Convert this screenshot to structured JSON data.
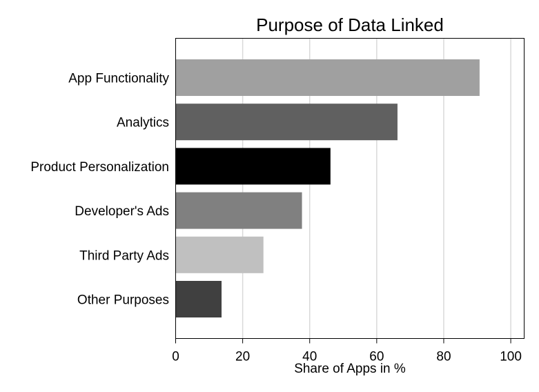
{
  "chart_data": {
    "type": "bar",
    "orientation": "horizontal",
    "title": "Purpose of Data Linked",
    "xlabel": "Share of Apps in %",
    "ylabel": "",
    "categories": [
      "App Functionality",
      "Analytics",
      "Product Personalization",
      "Developer's Ads",
      "Third Party Ads",
      "Other Purposes"
    ],
    "values": [
      90.7,
      66.2,
      46.2,
      37.7,
      26.2,
      13.7
    ],
    "colors": [
      "#a0a0a0",
      "#606060",
      "#000000",
      "#808080",
      "#c0c0c0",
      "#404040"
    ],
    "xlim": [
      0,
      104
    ],
    "xticks": [
      0,
      20,
      40,
      60,
      80,
      100
    ],
    "xtick_labels": [
      "0",
      "20",
      "40",
      "60",
      "80",
      "100"
    ],
    "grid": true,
    "grid_color": "#d9d9d9",
    "legend": "none"
  }
}
